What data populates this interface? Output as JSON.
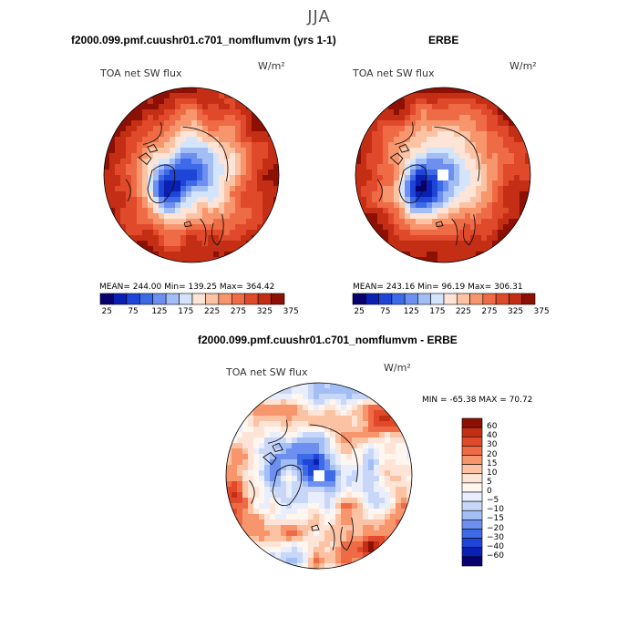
{
  "figure": {
    "season": "JJA"
  },
  "panels": [
    {
      "header": "f2000.099.pmf.cuushr01.c701_nomflumvm (yrs 1-1)",
      "variable": "TOA net SW flux",
      "units": "W/m²",
      "stats": "MEAN= 244.00   Min= 139.25   Max= 364.42",
      "colorbar_ticks": [
        "25",
        "75",
        "125",
        "175",
        "225",
        "275",
        "325",
        "375"
      ]
    },
    {
      "header": "ERBE",
      "variable": "TOA net SW flux",
      "units": "W/m²",
      "stats": "MEAN= 243.16   Min=  96.19   Max= 306.31",
      "colorbar_ticks": [
        "25",
        "75",
        "125",
        "175",
        "225",
        "275",
        "325",
        "375"
      ]
    },
    {
      "header": "f2000.099.pmf.cuushr01.c701_nomflumvm - ERBE",
      "variable": "TOA net SW flux",
      "units": "W/m²",
      "stats": "MIN = -65.38  MAX =  70.72",
      "colorbar_ticks": [
        "60",
        "40",
        "30",
        "20",
        "15",
        "10",
        "5",
        "0",
        "−5",
        "−10",
        "−15",
        "−20",
        "−30",
        "−40",
        "−60"
      ]
    }
  ],
  "colors": {
    "abs_scale": [
      "#08006e",
      "#0a1fb4",
      "#1e44d8",
      "#3d6ae6",
      "#6d8ff0",
      "#a3bdf5",
      "#d4e4fa",
      "#fde4d6",
      "#fbc2a3",
      "#f7956d",
      "#ef6b45",
      "#e04a2a",
      "#c42e15",
      "#8c1004"
    ],
    "diff_scale": [
      "#8c1004",
      "#c42e15",
      "#e04a2a",
      "#ef6b45",
      "#f7956d",
      "#fbc2a3",
      "#fde4d6",
      "#fff6ef",
      "#e8eefc",
      "#c8d7f8",
      "#a3bdf5",
      "#6d8ff0",
      "#3d6ae6",
      "#1e44d8",
      "#0a1fb4",
      "#08006e"
    ]
  },
  "chart_data": [
    {
      "type": "heatmap",
      "projection": "north-polar-stereographic",
      "title": "f2000.099.pmf.cuushr01.c701_nomflumvm (yrs 1-1)",
      "variable": "TOA net SW flux",
      "units": "W/m²",
      "mean": 244.0,
      "min": 139.25,
      "max": 364.42,
      "contour_levels": [
        25,
        50,
        75,
        100,
        125,
        150,
        175,
        200,
        225,
        250,
        275,
        300,
        325,
        350,
        375
      ],
      "colorbar": "horizontal-below"
    },
    {
      "type": "heatmap",
      "projection": "north-polar-stereographic",
      "title": "ERBE",
      "variable": "TOA net SW flux",
      "units": "W/m²",
      "mean": 243.16,
      "min": 96.19,
      "max": 306.31,
      "contour_levels": [
        25,
        50,
        75,
        100,
        125,
        150,
        175,
        200,
        225,
        250,
        275,
        300,
        325,
        350,
        375
      ],
      "colorbar": "horizontal-below"
    },
    {
      "type": "heatmap",
      "projection": "north-polar-stereographic",
      "title": "f2000.099.pmf.cuushr01.c701_nomflumvm - ERBE",
      "variable": "TOA net SW flux",
      "units": "W/m²",
      "min": -65.38,
      "max": 70.72,
      "contour_levels": [
        -60,
        -40,
        -30,
        -20,
        -15,
        -10,
        -5,
        0,
        5,
        10,
        15,
        20,
        30,
        40,
        60
      ],
      "colorbar": "vertical-right"
    }
  ]
}
